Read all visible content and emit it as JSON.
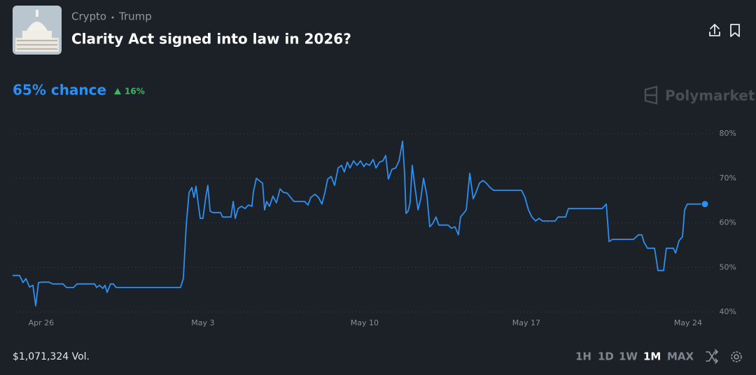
{
  "header": {
    "breadcrumb": [
      "Crypto",
      "Trump"
    ],
    "title": "Clarity Act signed into law in 2026?"
  },
  "summary": {
    "chance": "65% chance",
    "change": "16%"
  },
  "brand": "Polymarket",
  "footer": {
    "volume": "$1,071,324 Vol.",
    "ranges": [
      "1H",
      "1D",
      "1W",
      "1M",
      "MAX"
    ]
  },
  "chart_data": {
    "type": "line",
    "color": "#2d8ff0",
    "grid": true,
    "xlim": [
      114.76,
      144.82
    ],
    "ylim": [
      40,
      80
    ],
    "xticks": [
      {
        "value": 116,
        "label": "Apr 26"
      },
      {
        "value": 123,
        "label": "May 3"
      },
      {
        "value": 130,
        "label": "May 10"
      },
      {
        "value": 137,
        "label": "May 17"
      },
      {
        "value": 144,
        "label": "May 24"
      }
    ],
    "yticks": [
      {
        "value": 40,
        "label": "40%"
      },
      {
        "value": 50,
        "label": "50%"
      },
      {
        "value": 60,
        "label": "60%"
      },
      {
        "value": 70,
        "label": "70%"
      },
      {
        "value": 80,
        "label": "80%"
      }
    ],
    "x": [
      114.76,
      115.06,
      115.21,
      115.34,
      115.49,
      115.64,
      115.76,
      115.88,
      116.03,
      116.34,
      116.49,
      116.94,
      117.09,
      117.4,
      117.55,
      118.31,
      118.4,
      118.52,
      118.67,
      118.76,
      118.85,
      119.0,
      119.12,
      119.24,
      122.03,
      122.15,
      122.28,
      122.4,
      122.52,
      122.61,
      122.7,
      122.79,
      122.88,
      123.0,
      123.12,
      123.21,
      123.31,
      123.43,
      123.76,
      123.85,
      124.21,
      124.31,
      124.4,
      124.52,
      124.67,
      124.82,
      124.97,
      125.12,
      125.18,
      125.31,
      125.43,
      125.58,
      125.67,
      125.76,
      125.88,
      126.03,
      126.18,
      126.34,
      126.49,
      126.64,
      126.94,
      127.4,
      127.55,
      127.67,
      127.85,
      128.0,
      128.15,
      128.28,
      128.4,
      128.55,
      128.7,
      128.85,
      129.0,
      129.12,
      129.25,
      129.37,
      129.52,
      129.67,
      129.82,
      129.97,
      130.06,
      130.21,
      130.37,
      130.49,
      130.64,
      130.79,
      130.91,
      131.03,
      131.18,
      131.34,
      131.49,
      131.64,
      131.73,
      131.79,
      131.88,
      131.97,
      132.06,
      132.18,
      132.31,
      132.43,
      132.55,
      132.7,
      132.82,
      132.94,
      133.09,
      133.21,
      133.61,
      133.76,
      133.91,
      134.06,
      134.15,
      134.28,
      134.4,
      134.55,
      134.7,
      134.82,
      134.97,
      135.12,
      135.27,
      135.43,
      135.58,
      136.79,
      136.94,
      137.09,
      137.24,
      137.4,
      137.55,
      137.7,
      138.25,
      138.37,
      138.7,
      138.82,
      140.28,
      140.46,
      140.58,
      140.73,
      141.64,
      141.85,
      142.0,
      142.09,
      142.24,
      142.55,
      142.7,
      142.94,
      143.06,
      143.37,
      143.46,
      143.61,
      143.76,
      143.85,
      143.97,
      144.73
    ],
    "values": [
      48.2,
      48.2,
      46.6,
      47.5,
      45.6,
      46.0,
      41.4,
      46.6,
      46.7,
      46.7,
      46.3,
      46.3,
      45.5,
      45.5,
      46.3,
      46.3,
      45.5,
      46.0,
      45.3,
      46.0,
      44.4,
      46.3,
      46.3,
      45.5,
      45.5,
      47.5,
      59.8,
      66.8,
      67.9,
      65.7,
      68.2,
      64.5,
      61.0,
      61.0,
      65.7,
      68.4,
      62.6,
      62.3,
      62.3,
      61.3,
      61.3,
      64.8,
      61.0,
      63.2,
      63.7,
      63.2,
      64.0,
      63.7,
      66.8,
      70.0,
      69.5,
      68.9,
      62.9,
      64.8,
      63.7,
      66.0,
      64.5,
      67.6,
      66.8,
      66.7,
      64.8,
      64.8,
      64.0,
      65.7,
      66.4,
      65.7,
      64.2,
      66.8,
      69.8,
      70.4,
      68.4,
      72.3,
      72.9,
      71.4,
      73.6,
      72.3,
      73.9,
      72.9,
      73.9,
      72.6,
      73.3,
      72.9,
      74.2,
      72.3,
      73.6,
      73.9,
      75.1,
      69.8,
      72.0,
      72.3,
      73.9,
      78.3,
      71.1,
      62.1,
      62.6,
      64.5,
      72.9,
      67.9,
      62.9,
      65.4,
      70.0,
      66.0,
      59.1,
      59.8,
      61.3,
      59.5,
      59.5,
      58.8,
      59.1,
      57.3,
      61.3,
      62.1,
      62.9,
      71.1,
      65.4,
      66.8,
      68.9,
      69.5,
      68.9,
      67.9,
      67.3,
      67.3,
      65.7,
      62.9,
      61.3,
      60.4,
      61.0,
      60.4,
      60.4,
      61.3,
      61.3,
      63.2,
      63.2,
      64.2,
      55.8,
      56.3,
      56.3,
      57.3,
      57.3,
      55.7,
      54.3,
      54.3,
      49.3,
      49.3,
      54.3,
      54.3,
      53.2,
      56.0,
      56.9,
      62.9,
      64.2,
      64.2
    ]
  }
}
